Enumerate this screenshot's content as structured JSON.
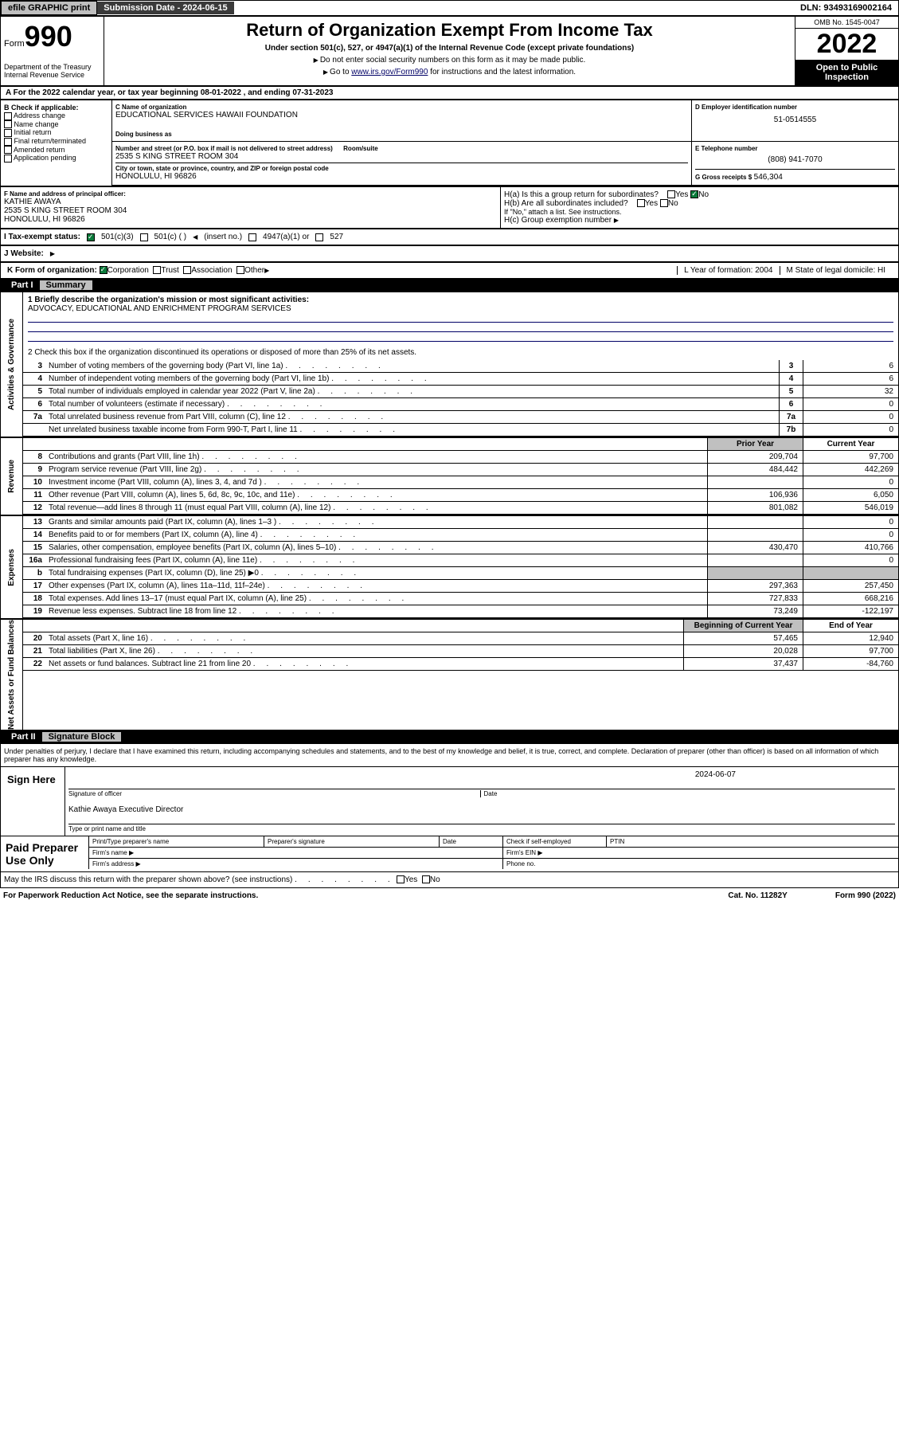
{
  "topbar": {
    "efile": "efile GRAPHIC print",
    "sub_label": "Submission Date - 2024-06-15",
    "dln": "DLN: 93493169002164"
  },
  "header": {
    "form_word": "Form",
    "form_no": "990",
    "dept": "Department of the Treasury\nInternal Revenue Service",
    "title": "Return of Organization Exempt From Income Tax",
    "subtitle": "Under section 501(c), 527, or 4947(a)(1) of the Internal Revenue Code (except private foundations)",
    "note1": "Do not enter social security numbers on this form as it may be made public.",
    "note2_pre": "Go to ",
    "note2_link": "www.irs.gov/Form990",
    "note2_post": " for instructions and the latest information.",
    "omb": "OMB No. 1545-0047",
    "year": "2022",
    "open_pub": "Open to Public Inspection"
  },
  "row_a": "A For the 2022 calendar year, or tax year beginning 08-01-2022    , and ending 07-31-2023",
  "col_b": {
    "title": "B Check if applicable:",
    "opts": [
      "Address change",
      "Name change",
      "Initial return",
      "Final return/terminated",
      "Amended return",
      "Application pending"
    ]
  },
  "org": {
    "name_label": "C Name of organization",
    "name": "EDUCATIONAL SERVICES HAWAII FOUNDATION",
    "dba_label": "Doing business as",
    "dba": "",
    "addr_label": "Number and street (or P.O. box if mail is not delivered to street address)",
    "room_label": "Room/suite",
    "addr": "2535 S KING STREET ROOM 304",
    "city_label": "City or town, state or province, country, and ZIP or foreign postal code",
    "city": "HONOLULU, HI  96826"
  },
  "d": {
    "label": "D Employer identification number",
    "val": "51-0514555"
  },
  "e": {
    "label": "E Telephone number",
    "val": "(808) 941-7070"
  },
  "g": {
    "label": "G Gross receipts $",
    "val": "546,304"
  },
  "f": {
    "label": "F  Name and address of principal officer:",
    "name": "KATHIE AWAYA",
    "addr": "2535 S KING STREET ROOM 304\nHONOLULU, HI  96826"
  },
  "h": {
    "a": "H(a)  Is this a group return for subordinates?",
    "a_yes": "Yes",
    "a_no": "No",
    "b": "H(b)  Are all subordinates included?",
    "b_note": "If \"No,\" attach a list. See instructions.",
    "c": "H(c)  Group exemption number"
  },
  "i": {
    "label": "I   Tax-exempt status:",
    "opts": [
      "501(c)(3)",
      "501(c) (   )",
      "(insert no.)",
      "4947(a)(1) or",
      "527"
    ]
  },
  "j": "J   Website:",
  "k": {
    "label": "K Form of organization:",
    "opts": [
      "Corporation",
      "Trust",
      "Association",
      "Other"
    ],
    "l": "L Year of formation: 2004",
    "m": "M State of legal domicile: HI"
  },
  "part1": {
    "num": "Part I",
    "title": "Summary"
  },
  "mission": {
    "line1": "1   Briefly describe the organization's mission or most significant activities:",
    "text": "ADVOCACY, EDUCATIONAL AND ENRICHMENT PROGRAM SERVICES"
  },
  "line2": "2   Check this box        if the organization discontinued its operations or disposed of more than 25% of its net assets.",
  "gov_lines": [
    {
      "n": "3",
      "t": "Number of voting members of the governing body (Part VI, line 1a)",
      "b": "3",
      "v": "6"
    },
    {
      "n": "4",
      "t": "Number of independent voting members of the governing body (Part VI, line 1b)",
      "b": "4",
      "v": "6"
    },
    {
      "n": "5",
      "t": "Total number of individuals employed in calendar year 2022 (Part V, line 2a)",
      "b": "5",
      "v": "32"
    },
    {
      "n": "6",
      "t": "Total number of volunteers (estimate if necessary)",
      "b": "6",
      "v": "0"
    },
    {
      "n": "7a",
      "t": "Total unrelated business revenue from Part VIII, column (C), line 12",
      "b": "7a",
      "v": "0"
    },
    {
      "n": "",
      "t": "Net unrelated business taxable income from Form 990-T, Part I, line 11",
      "b": "7b",
      "v": "0"
    }
  ],
  "col_hdr": {
    "prior": "Prior Year",
    "current": "Current Year"
  },
  "rev_lines": [
    {
      "n": "8",
      "t": "Contributions and grants (Part VIII, line 1h)",
      "p": "209,704",
      "c": "97,700"
    },
    {
      "n": "9",
      "t": "Program service revenue (Part VIII, line 2g)",
      "p": "484,442",
      "c": "442,269"
    },
    {
      "n": "10",
      "t": "Investment income (Part VIII, column (A), lines 3, 4, and 7d )",
      "p": "",
      "c": "0"
    },
    {
      "n": "11",
      "t": "Other revenue (Part VIII, column (A), lines 5, 6d, 8c, 9c, 10c, and 11e)",
      "p": "106,936",
      "c": "6,050"
    },
    {
      "n": "12",
      "t": "Total revenue—add lines 8 through 11 (must equal Part VIII, column (A), line 12)",
      "p": "801,082",
      "c": "546,019"
    }
  ],
  "exp_lines": [
    {
      "n": "13",
      "t": "Grants and similar amounts paid (Part IX, column (A), lines 1–3 )",
      "p": "",
      "c": "0"
    },
    {
      "n": "14",
      "t": "Benefits paid to or for members (Part IX, column (A), line 4)",
      "p": "",
      "c": "0"
    },
    {
      "n": "15",
      "t": "Salaries, other compensation, employee benefits (Part IX, column (A), lines 5–10)",
      "p": "430,470",
      "c": "410,766"
    },
    {
      "n": "16a",
      "t": "Professional fundraising fees (Part IX, column (A), line 11e)",
      "p": "",
      "c": "0"
    },
    {
      "n": "b",
      "t": "Total fundraising expenses (Part IX, column (D), line 25) ▶0",
      "p": "",
      "c": "",
      "gray": true
    },
    {
      "n": "17",
      "t": "Other expenses (Part IX, column (A), lines 11a–11d, 11f–24e)",
      "p": "297,363",
      "c": "257,450"
    },
    {
      "n": "18",
      "t": "Total expenses. Add lines 13–17 (must equal Part IX, column (A), line 25)",
      "p": "727,833",
      "c": "668,216"
    },
    {
      "n": "19",
      "t": "Revenue less expenses. Subtract line 18 from line 12",
      "p": "73,249",
      "c": "-122,197"
    }
  ],
  "net_hdr": {
    "beg": "Beginning of Current Year",
    "end": "End of Year"
  },
  "net_lines": [
    {
      "n": "20",
      "t": "Total assets (Part X, line 16)",
      "p": "57,465",
      "c": "12,940"
    },
    {
      "n": "21",
      "t": "Total liabilities (Part X, line 26)",
      "p": "20,028",
      "c": "97,700"
    },
    {
      "n": "22",
      "t": "Net assets or fund balances. Subtract line 21 from line 20",
      "p": "37,437",
      "c": "-84,760"
    }
  ],
  "vtabs": {
    "gov": "Activities & Governance",
    "rev": "Revenue",
    "exp": "Expenses",
    "net": "Net Assets or Fund Balances"
  },
  "part2": {
    "num": "Part II",
    "title": "Signature Block"
  },
  "sig": {
    "decl": "Under penalties of perjury, I declare that I have examined this return, including accompanying schedules and statements, and to the best of my knowledge and belief, it is true, correct, and complete. Declaration of preparer (other than officer) is based on all information of which preparer has any knowledge.",
    "sign_here": "Sign Here",
    "officer_sig": "Signature of officer",
    "date_label": "Date",
    "date": "2024-06-07",
    "name": "Kathie Awaya  Executive Director",
    "name_label": "Type or print name and title"
  },
  "prep": {
    "title": "Paid Preparer Use Only",
    "cols": [
      "Print/Type preparer's name",
      "Preparer's signature",
      "Date"
    ],
    "check": "Check         if self-employed",
    "ptin": "PTIN",
    "firm_name": "Firm's name",
    "firm_ein": "Firm's EIN",
    "firm_addr": "Firm's address",
    "phone": "Phone no."
  },
  "may_irs": "May the IRS discuss this return with the preparer shown above? (see instructions)",
  "footer": {
    "left": "For Paperwork Reduction Act Notice, see the separate instructions.",
    "mid": "Cat. No. 11282Y",
    "right": "Form 990 (2022)"
  }
}
